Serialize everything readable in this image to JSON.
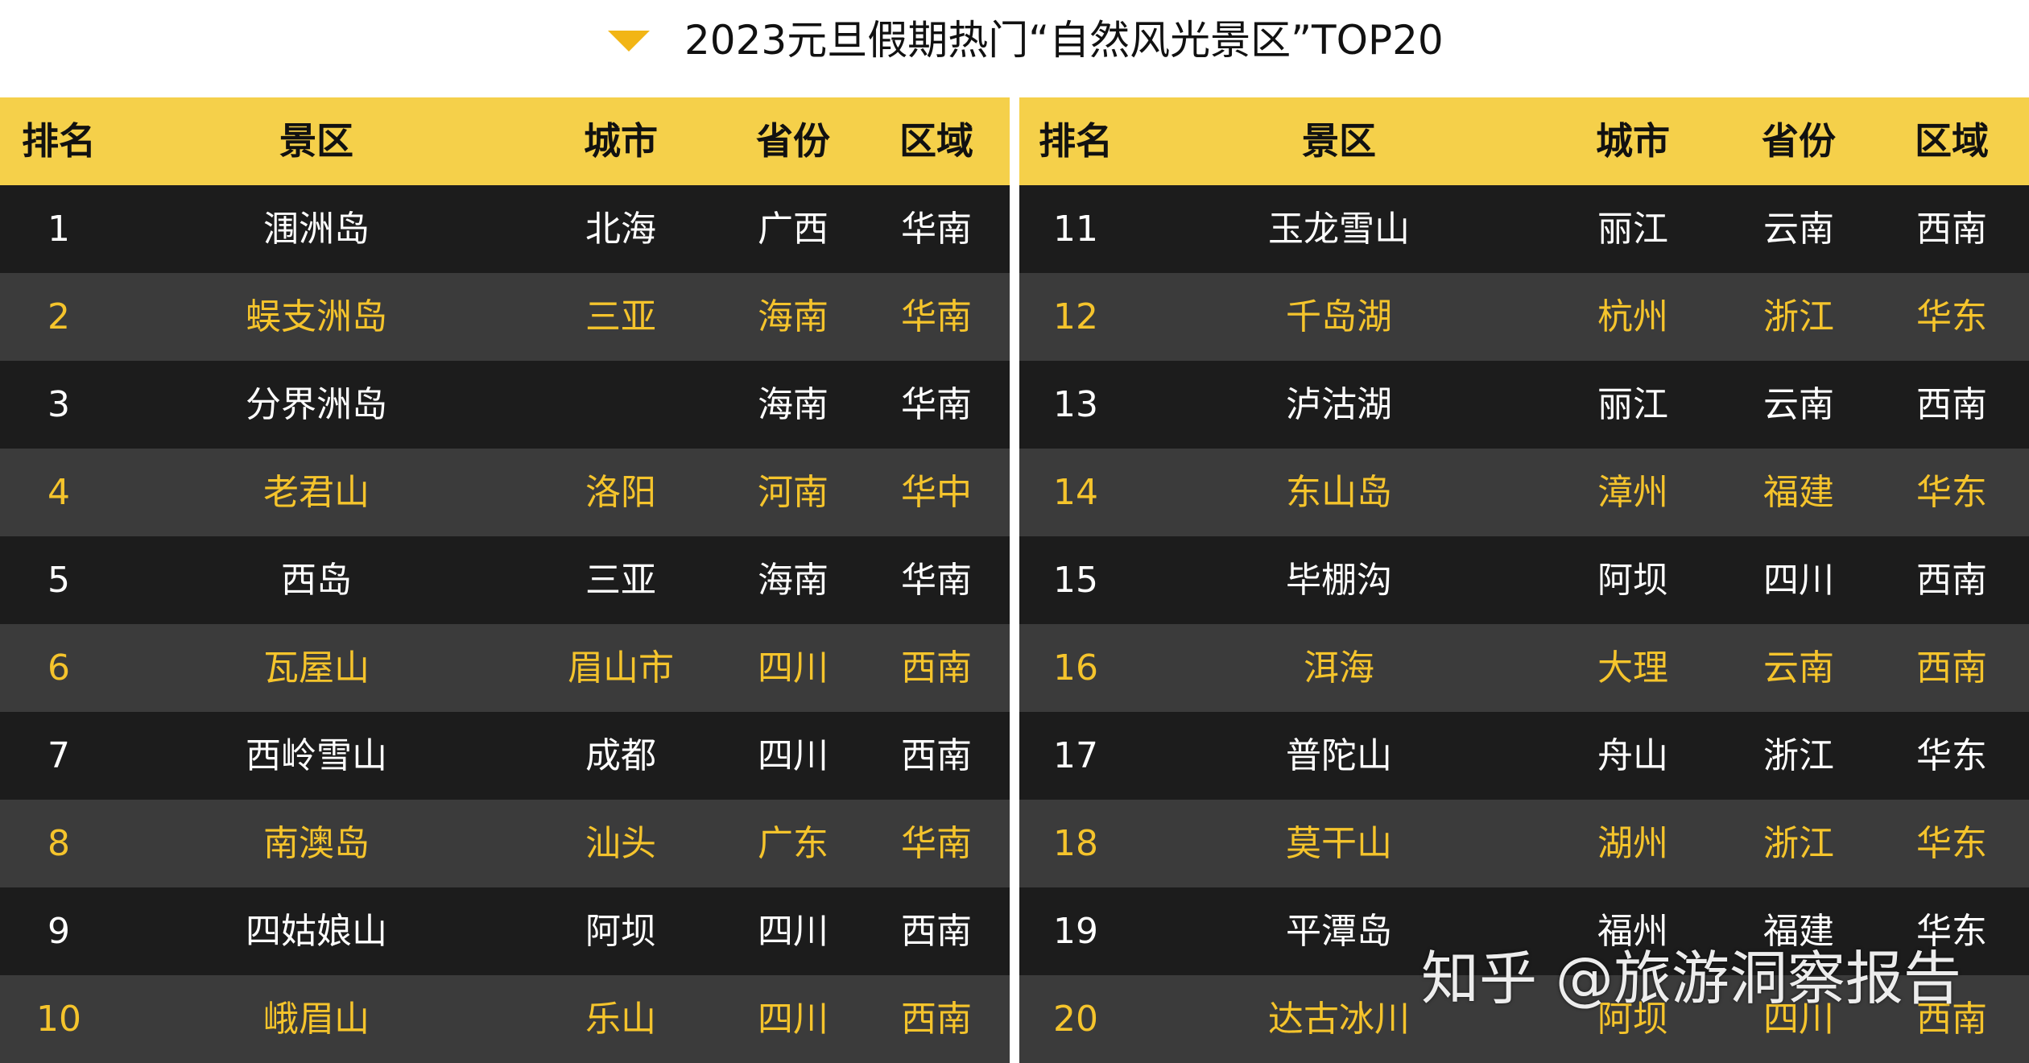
{
  "title": "2023元旦假期热门“自然风光景区”TOP20",
  "headers": [
    "排名",
    "景区",
    "城市",
    "省份",
    "区域"
  ],
  "left_rows": [
    {
      "rank": "1",
      "scenic": "涠洲岛",
      "city": "北海",
      "province": "广西",
      "region": "华南"
    },
    {
      "rank": "2",
      "scenic": "蜈支洲岛",
      "city": "三亚",
      "province": "海南",
      "region": "华南"
    },
    {
      "rank": "3",
      "scenic": "分界洲岛",
      "city": "",
      "province": "海南",
      "region": "华南"
    },
    {
      "rank": "4",
      "scenic": "老君山",
      "city": "洛阳",
      "province": "河南",
      "region": "华中"
    },
    {
      "rank": "5",
      "scenic": "西岛",
      "city": "三亚",
      "province": "海南",
      "region": "华南"
    },
    {
      "rank": "6",
      "scenic": "瓦屋山",
      "city": "眉山市",
      "province": "四川",
      "region": "西南"
    },
    {
      "rank": "7",
      "scenic": "西岭雪山",
      "city": "成都",
      "province": "四川",
      "region": "西南"
    },
    {
      "rank": "8",
      "scenic": "南澳岛",
      "city": "汕头",
      "province": "广东",
      "region": "华南"
    },
    {
      "rank": "9",
      "scenic": "四姑娘山",
      "city": "阿坝",
      "province": "四川",
      "region": "西南"
    },
    {
      "rank": "10",
      "scenic": "峨眉山",
      "city": "乐山",
      "province": "四川",
      "region": "西南"
    }
  ],
  "right_rows": [
    {
      "rank": "11",
      "scenic": "玉龙雪山",
      "city": "丽江",
      "province": "云南",
      "region": "西南"
    },
    {
      "rank": "12",
      "scenic": "千岛湖",
      "city": "杭州",
      "province": "浙江",
      "region": "华东"
    },
    {
      "rank": "13",
      "scenic": "泸沽湖",
      "city": "丽江",
      "province": "云南",
      "region": "西南"
    },
    {
      "rank": "14",
      "scenic": "东山岛",
      "city": "漳州",
      "province": "福建",
      "region": "华东"
    },
    {
      "rank": "15",
      "scenic": "毕棚沟",
      "city": "阿坝",
      "province": "四川",
      "region": "西南"
    },
    {
      "rank": "16",
      "scenic": "洱海",
      "city": "大理",
      "province": "云南",
      "region": "西南"
    },
    {
      "rank": "17",
      "scenic": "普陀山",
      "city": "舟山",
      "province": "浙江",
      "region": "华东"
    },
    {
      "rank": "18",
      "scenic": "莫干山",
      "city": "湖州",
      "province": "浙江",
      "region": "华东"
    },
    {
      "rank": "19",
      "scenic": "平潭岛",
      "city": "福州",
      "province": "福建",
      "region": "华东"
    },
    {
      "rank": "20",
      "scenic": "达古冰川",
      "city": "阿坝",
      "province": "四川",
      "region": "西南"
    }
  ],
  "watermark": "知乎 @旅游洞察报告",
  "colors": {
    "header_bg": "#f5d04a",
    "row_dark": "#1c1c1c",
    "row_gray": "#3b3b3b",
    "text_white": "#ffffff",
    "text_gold": "#f5c42c",
    "triangle": "#f2b515"
  }
}
